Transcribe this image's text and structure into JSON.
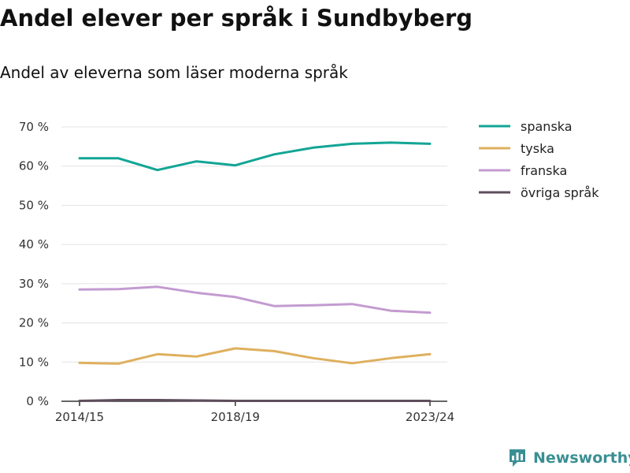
{
  "chart_data": {
    "type": "line",
    "title": "Andel elever per språk i Sundbyberg",
    "subtitle": "Andel av eleverna som läser moderna språk",
    "xlabel": "",
    "ylabel": "",
    "x": [
      "2014/15",
      "2015/16",
      "2016/17",
      "2017/18",
      "2018/19",
      "2019/20",
      "2020/21",
      "2021/22",
      "2022/23",
      "2023/24"
    ],
    "x_tick_labels": [
      "2014/15",
      "2018/19",
      "2023/24"
    ],
    "x_tick_indices": [
      0,
      4,
      9
    ],
    "y_ticks": [
      0,
      10,
      20,
      30,
      40,
      50,
      60,
      70
    ],
    "y_tick_suffix": " %",
    "ylim": [
      0,
      70
    ],
    "grid": true,
    "legend_position": "right",
    "series": [
      {
        "name": "spanska",
        "color": "#12a595",
        "values": [
          62,
          62,
          59,
          61.2,
          60.2,
          63,
          64.7,
          65.7,
          66,
          65.7
        ]
      },
      {
        "name": "tyska",
        "color": "#deb05e",
        "values": [
          9.8,
          9.6,
          12,
          11.4,
          13.5,
          12.8,
          11,
          9.7,
          11,
          12
        ]
      },
      {
        "name": "franska",
        "color": "#c39bd0",
        "values": [
          28.5,
          28.6,
          29.2,
          27.7,
          26.6,
          24.3,
          24.5,
          24.8,
          23.1,
          22.6
        ]
      },
      {
        "name": "övriga språk",
        "color": "#5f4d5c",
        "values": [
          0.1,
          0.3,
          0.3,
          0.2,
          0.1,
          0.1,
          0.1,
          0.1,
          0.1,
          0.1
        ]
      }
    ]
  },
  "brand": {
    "name": "Newsworthy",
    "color": "#3a8f93"
  }
}
